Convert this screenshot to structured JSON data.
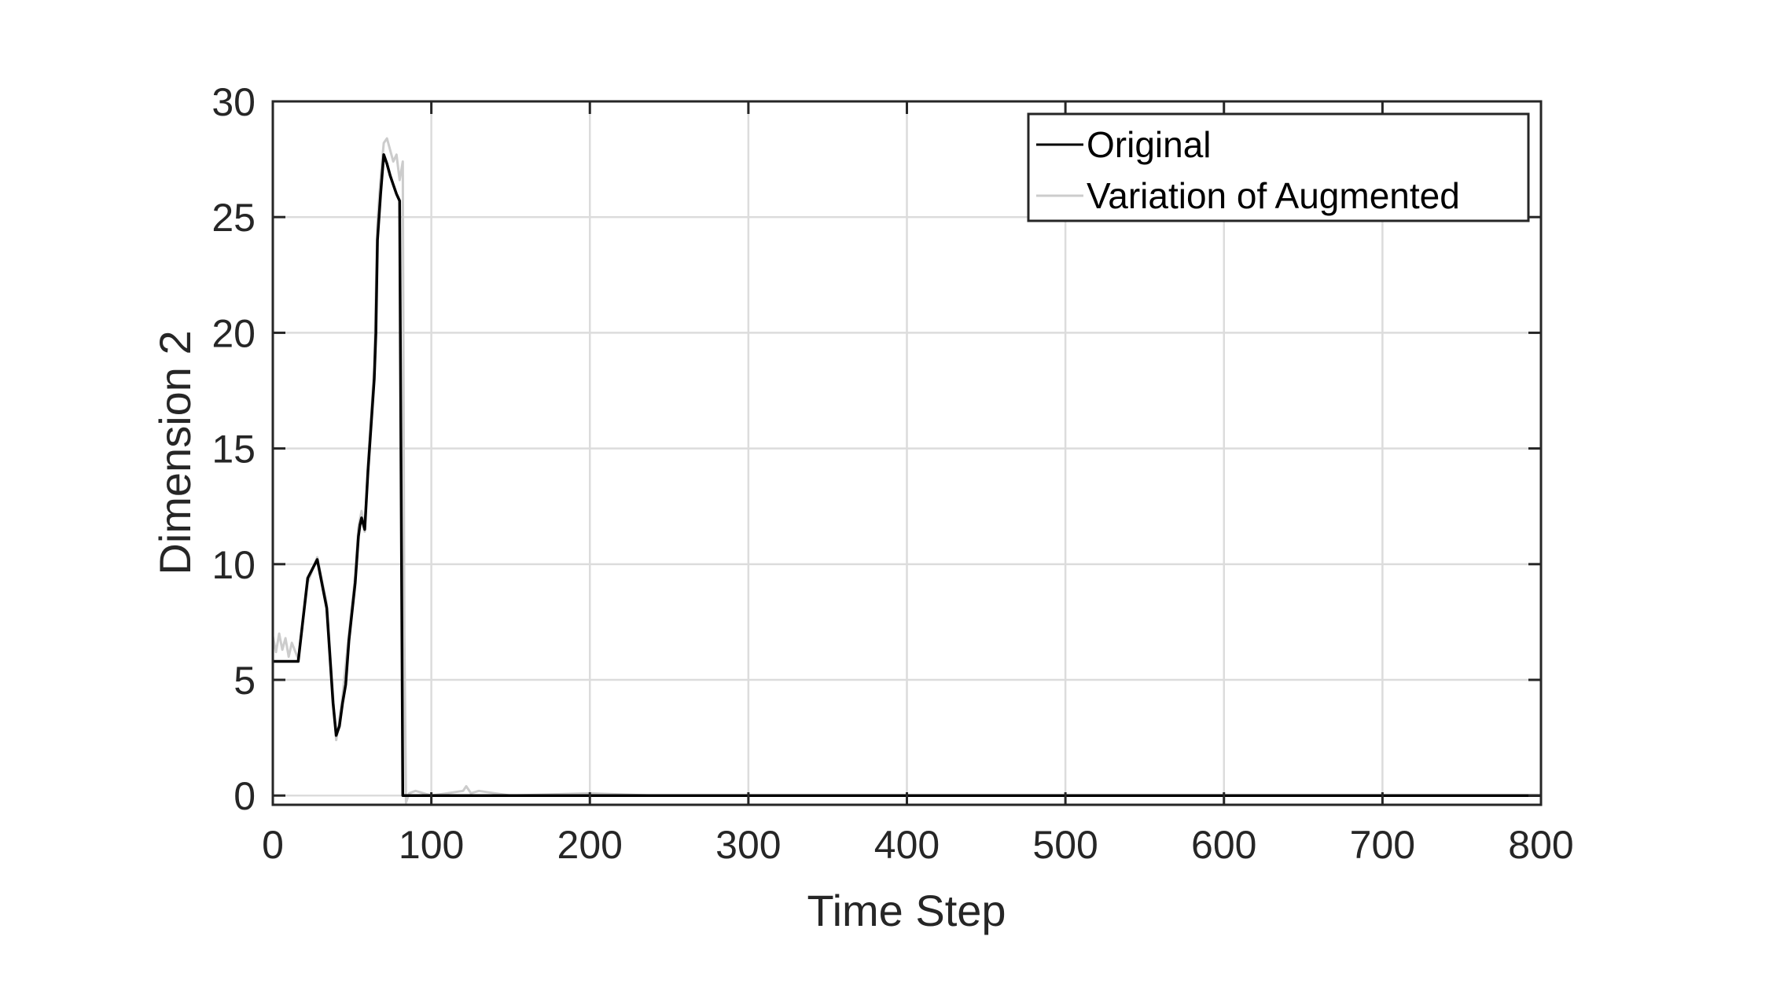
{
  "chart_data": {
    "type": "line",
    "title": "",
    "xlabel": "Time Step",
    "ylabel": "Dimension 2",
    "xlim": [
      0,
      800
    ],
    "ylim": [
      -0.4,
      30
    ],
    "xticks": [
      0,
      100,
      200,
      300,
      400,
      500,
      600,
      700,
      800
    ],
    "yticks": [
      0,
      5,
      10,
      15,
      20,
      25,
      30
    ],
    "grid": true,
    "legend_position": "top-right",
    "series": [
      {
        "name": "Original",
        "color": "#000000",
        "x": [
          0,
          4,
          8,
          12,
          16,
          22,
          28,
          34,
          38,
          40,
          42,
          44,
          46,
          48,
          52,
          54,
          55,
          56,
          58,
          60,
          62,
          64,
          65,
          66,
          68,
          70,
          72,
          74,
          76,
          78,
          80,
          82,
          84,
          86,
          100,
          200,
          300,
          400,
          500,
          600,
          700,
          800
        ],
        "y": [
          5.8,
          5.8,
          5.8,
          5.8,
          5.8,
          9.4,
          10.2,
          8.1,
          4.0,
          2.6,
          3.0,
          4.0,
          4.8,
          6.7,
          9.2,
          11.2,
          11.7,
          12.0,
          11.5,
          14.0,
          16.0,
          18.0,
          20.0,
          24.0,
          26.0,
          27.7,
          27.3,
          26.8,
          26.4,
          26.0,
          25.7,
          0.0,
          0.0,
          0.0,
          0.0,
          0.0,
          0.0,
          0.0,
          0.0,
          0.0,
          0.0,
          0.0
        ]
      },
      {
        "name": "Variation of Augmented",
        "color": "#cccccc",
        "x": [
          0,
          2,
          4,
          6,
          8,
          10,
          12,
          16,
          22,
          28,
          34,
          38,
          40,
          42,
          44,
          48,
          52,
          54,
          56,
          58,
          60,
          64,
          66,
          68,
          70,
          72,
          74,
          76,
          78,
          80,
          82,
          83,
          84,
          86,
          90,
          100,
          110,
          120,
          122,
          125,
          130,
          140,
          150,
          200,
          240,
          300,
          400,
          500,
          600,
          700,
          800
        ],
        "y": [
          6.9,
          6.2,
          7.0,
          6.3,
          6.8,
          6.0,
          6.6,
          5.9,
          9.2,
          10.3,
          8.3,
          4.3,
          2.4,
          3.3,
          4.3,
          7.0,
          9.5,
          11.6,
          12.3,
          11.4,
          14.3,
          18.5,
          24.8,
          26.7,
          28.2,
          28.4,
          27.9,
          27.4,
          27.7,
          26.6,
          27.4,
          7.0,
          -0.3,
          0.1,
          0.2,
          0.0,
          0.1,
          0.2,
          0.4,
          0.1,
          0.2,
          0.1,
          0.0,
          0.1,
          0.0,
          0.0,
          0.0,
          0.0,
          0.0,
          0.0,
          0.0
        ]
      }
    ]
  }
}
